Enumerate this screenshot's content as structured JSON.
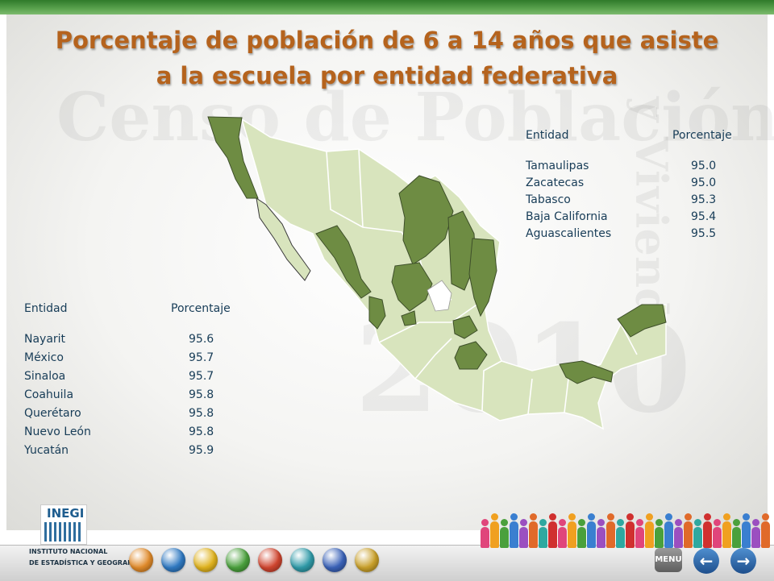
{
  "title": "Porcentaje de población de 6 a 14 años que asiste a la escuela por entidad federativa",
  "watermark": {
    "line1": "Censo de Población",
    "line2": "y Vivienda",
    "line3": "2010"
  },
  "colors": {
    "highlight_state": "#6e8c43",
    "other_state": "#d8e4bd",
    "title": "#b5631d",
    "table_text": "#173c57"
  },
  "map": {
    "highlighted_states": [
      "Baja California",
      "Sinaloa",
      "Nayarit",
      "Coahuila",
      "Nuevo León",
      "Tamaulipas",
      "Zacatecas",
      "Aguascalientes",
      "Querétaro",
      "México",
      "Tabasco",
      "Yucatán"
    ]
  },
  "table_top": {
    "header_entity": "Entidad",
    "header_value": "Porcentaje",
    "rows": [
      {
        "entity": "Tamaulipas",
        "value": "95.0"
      },
      {
        "entity": "Zacatecas",
        "value": "95.0"
      },
      {
        "entity": "Tabasco",
        "value": "95.3"
      },
      {
        "entity": "Baja California",
        "value": "95.4"
      },
      {
        "entity": "Aguascalientes",
        "value": "95.5"
      }
    ]
  },
  "table_bottom": {
    "header_entity": "Entidad",
    "header_value": "Porcentaje",
    "rows": [
      {
        "entity": "Nayarit",
        "value": "95.6"
      },
      {
        "entity": "México",
        "value": "95.7"
      },
      {
        "entity": "Sinaloa",
        "value": "95.7"
      },
      {
        "entity": "Coahuila",
        "value": "95.8"
      },
      {
        "entity": "Querétaro",
        "value": "95.8"
      },
      {
        "entity": "Nuevo León",
        "value": "95.8"
      },
      {
        "entity": "Yucatán",
        "value": "95.9"
      }
    ]
  },
  "footer": {
    "logo_text": "INEGI",
    "institution_line1": "INSTITUTO NACIONAL",
    "institution_line2": "DE ESTADÍSTICA Y GEOGRAFÍA",
    "menu_label": "MENU",
    "prev_icon": "arrow-left-icon",
    "next_icon": "arrow-right-icon",
    "nav_icons": [
      {
        "name": "family-icon",
        "color": "#e08a2a"
      },
      {
        "name": "info-icon",
        "color": "#2f79c2"
      },
      {
        "name": "children-icon",
        "color": "#e0b31e"
      },
      {
        "name": "people-icon",
        "color": "#4aa03c"
      },
      {
        "name": "house-icon",
        "color": "#d0452f"
      },
      {
        "name": "building-icon",
        "color": "#2f9aa8"
      },
      {
        "name": "travel-icon",
        "color": "#3a62b8"
      },
      {
        "name": "folder-icon",
        "color": "#c9a02a"
      }
    ]
  }
}
